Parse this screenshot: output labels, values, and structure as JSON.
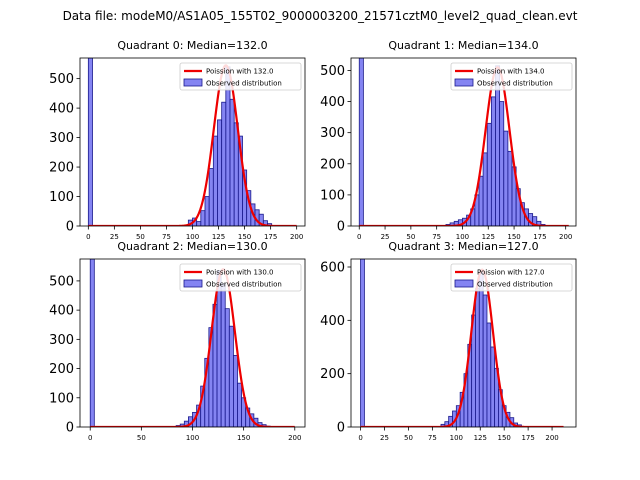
{
  "figure_title": "Data file: modeM0/AS1A05_155T02_9000003200_21571cztM0_level2_quad_clean.evt",
  "colors": {
    "bar_fill": "#6f6ff0",
    "bar_edge": "#1a1a8c",
    "fit_line": "#ee0000",
    "axis": "#000000"
  },
  "chart_data": [
    {
      "type": "bar",
      "title": "Quadrant 0: Median=132.0",
      "legend": [
        "Poission with 132.0",
        "Observed distribution"
      ],
      "legend_position": "top-right",
      "xlim": [
        -8,
        208
      ],
      "ylim": [
        0,
        570
      ],
      "xticks": [
        0,
        25,
        50,
        75,
        100,
        125,
        150,
        175,
        200
      ],
      "yticks": [
        0,
        100,
        200,
        300,
        400,
        500
      ],
      "bin_width": 4,
      "bins": [
        [
          0,
          570
        ],
        [
          96,
          20
        ],
        [
          100,
          27
        ],
        [
          104,
          15
        ],
        [
          108,
          52
        ],
        [
          112,
          100
        ],
        [
          116,
          195
        ],
        [
          120,
          305
        ],
        [
          124,
          360
        ],
        [
          128,
          420
        ],
        [
          132,
          540
        ],
        [
          136,
          430
        ],
        [
          140,
          350
        ],
        [
          144,
          305
        ],
        [
          148,
          190
        ],
        [
          152,
          120
        ],
        [
          156,
          75
        ],
        [
          160,
          55
        ],
        [
          164,
          40
        ],
        [
          168,
          18
        ],
        [
          172,
          8
        ]
      ],
      "poisson_mean": 132.0,
      "poisson_peak": 545,
      "fit_range": [
        0,
        200
      ]
    },
    {
      "type": "bar",
      "title": "Quadrant 1: Median=134.0",
      "legend": [
        "Poission with 134.0",
        "Observed distribution"
      ],
      "legend_position": "top-right",
      "xlim": [
        -8,
        210
      ],
      "ylim": [
        0,
        540
      ],
      "xticks": [
        0,
        25,
        50,
        75,
        100,
        125,
        150,
        175,
        200
      ],
      "yticks": [
        0,
        100,
        200,
        300,
        400,
        500
      ],
      "bin_width": 4,
      "bins": [
        [
          0,
          540
        ],
        [
          84,
          5
        ],
        [
          88,
          10
        ],
        [
          92,
          15
        ],
        [
          96,
          20
        ],
        [
          100,
          25
        ],
        [
          104,
          35
        ],
        [
          108,
          55
        ],
        [
          112,
          100
        ],
        [
          116,
          160
        ],
        [
          120,
          235
        ],
        [
          124,
          330
        ],
        [
          128,
          415
        ],
        [
          132,
          515
        ],
        [
          136,
          400
        ],
        [
          140,
          305
        ],
        [
          144,
          240
        ],
        [
          148,
          190
        ],
        [
          152,
          120
        ],
        [
          156,
          75
        ],
        [
          160,
          55
        ],
        [
          164,
          40
        ],
        [
          168,
          30
        ],
        [
          172,
          15
        ],
        [
          176,
          5
        ]
      ],
      "poisson_mean": 134.0,
      "poisson_peak": 510,
      "fit_range": [
        0,
        203
      ]
    },
    {
      "type": "bar",
      "title": "Quadrant 2: Median=130.0",
      "legend": [
        "Poission with 130.0",
        "Observed distribution"
      ],
      "legend_position": "top-right",
      "xlim": [
        -10,
        210
      ],
      "ylim": [
        0,
        575
      ],
      "xticks": [
        0,
        50,
        100,
        150,
        200
      ],
      "yticks": [
        0,
        100,
        200,
        300,
        400,
        500
      ],
      "bin_width": 4,
      "bins": [
        [
          0,
          575
        ],
        [
          84,
          5
        ],
        [
          88,
          10
        ],
        [
          92,
          20
        ],
        [
          96,
          35
        ],
        [
          100,
          50
        ],
        [
          104,
          75
        ],
        [
          108,
          140
        ],
        [
          112,
          235
        ],
        [
          116,
          340
        ],
        [
          120,
          420
        ],
        [
          124,
          535
        ],
        [
          128,
          490
        ],
        [
          132,
          405
        ],
        [
          136,
          345
        ],
        [
          140,
          245
        ],
        [
          144,
          150
        ],
        [
          148,
          100
        ],
        [
          152,
          65
        ],
        [
          156,
          45
        ],
        [
          160,
          30
        ],
        [
          164,
          15
        ],
        [
          168,
          8
        ],
        [
          172,
          3
        ]
      ],
      "poisson_mean": 130.0,
      "poisson_peak": 540,
      "fit_range": [
        0,
        200
      ]
    },
    {
      "type": "bar",
      "title": "Quadrant 3: Median=127.0",
      "legend": [
        "Poission with 127.0",
        "Observed distribution"
      ],
      "legend_position": "top-right",
      "xlim": [
        -10,
        225
      ],
      "ylim": [
        0,
        630
      ],
      "xticks": [
        0,
        25,
        50,
        75,
        100,
        125,
        150,
        175,
        200
      ],
      "yticks": [
        0,
        200,
        400,
        600
      ],
      "bin_width": 4,
      "bins": [
        [
          0,
          630
        ],
        [
          84,
          10
        ],
        [
          88,
          20
        ],
        [
          92,
          40
        ],
        [
          96,
          60
        ],
        [
          100,
          80
        ],
        [
          104,
          130
        ],
        [
          108,
          200
        ],
        [
          112,
          310
        ],
        [
          116,
          420
        ],
        [
          120,
          520
        ],
        [
          124,
          585
        ],
        [
          128,
          495
        ],
        [
          132,
          390
        ],
        [
          136,
          300
        ],
        [
          140,
          220
        ],
        [
          144,
          140
        ],
        [
          148,
          80
        ],
        [
          152,
          55
        ],
        [
          156,
          35
        ],
        [
          160,
          15
        ],
        [
          164,
          8
        ]
      ],
      "poisson_mean": 127.0,
      "poisson_peak": 590,
      "fit_range": [
        0,
        212
      ]
    }
  ]
}
